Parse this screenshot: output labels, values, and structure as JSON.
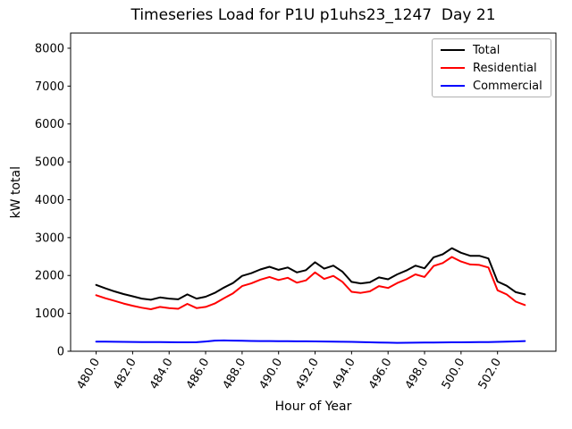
{
  "title": "Timeseries Load for P1U p1uhs23_1247  Day 21",
  "chart_data": {
    "type": "line",
    "title": "Timeseries Load for P1U p1uhs23_1247  Day 21",
    "xlabel": "Hour of Year",
    "ylabel": "kW total",
    "xlim": [
      478.6,
      505.2
    ],
    "ylim": [
      0,
      8400
    ],
    "grid": false,
    "legend_position": "upper right",
    "yticks": [
      0,
      1000,
      2000,
      3000,
      4000,
      5000,
      6000,
      7000,
      8000
    ],
    "xticks": {
      "values": [
        480,
        482,
        484,
        486,
        488,
        490,
        492,
        494,
        496,
        498,
        500,
        502
      ],
      "labels": [
        "480.0",
        "482.0",
        "484.0",
        "486.0",
        "488.0",
        "490.0",
        "492.0",
        "494.0",
        "496.0",
        "498.0",
        "500.0",
        "502.0"
      ]
    },
    "x": [
      480.0,
      480.5,
      481.0,
      481.5,
      482.0,
      482.5,
      483.0,
      483.5,
      484.0,
      484.5,
      485.0,
      485.5,
      486.0,
      486.5,
      487.0,
      487.5,
      488.0,
      488.5,
      489.0,
      489.5,
      490.0,
      490.5,
      491.0,
      491.5,
      492.0,
      492.5,
      493.0,
      493.5,
      494.0,
      494.5,
      495.0,
      495.5,
      496.0,
      496.5,
      497.0,
      497.5,
      498.0,
      498.5,
      499.0,
      499.5,
      500.0,
      500.5,
      501.0,
      501.5,
      502.0,
      502.5,
      503.0,
      503.5
    ],
    "series": [
      {
        "name": "Total",
        "color": "#000000",
        "values": [
          1750,
          1660,
          1580,
          1510,
          1450,
          1390,
          1360,
          1420,
          1390,
          1370,
          1500,
          1390,
          1440,
          1540,
          1680,
          1800,
          1990,
          2060,
          2160,
          2230,
          2150,
          2210,
          2080,
          2140,
          2350,
          2180,
          2260,
          2100,
          1830,
          1790,
          1820,
          1950,
          1900,
          2030,
          2130,
          2260,
          2190,
          2480,
          2560,
          2720,
          2600,
          2520,
          2520,
          2450,
          1840,
          1730,
          1560,
          1500
        ]
      },
      {
        "name": "Residential",
        "color": "#ff0000",
        "values": [
          1480,
          1400,
          1330,
          1260,
          1200,
          1150,
          1110,
          1170,
          1140,
          1120,
          1250,
          1140,
          1170,
          1260,
          1400,
          1530,
          1720,
          1790,
          1890,
          1960,
          1880,
          1940,
          1810,
          1870,
          2080,
          1910,
          1990,
          1830,
          1570,
          1540,
          1580,
          1720,
          1670,
          1800,
          1900,
          2030,
          1960,
          2250,
          2330,
          2490,
          2370,
          2290,
          2280,
          2210,
          1610,
          1500,
          1310,
          1220
        ]
      },
      {
        "name": "Commercial",
        "color": "#0000ff",
        "values": [
          255,
          252,
          250,
          248,
          245,
          242,
          240,
          240,
          238,
          237,
          236,
          238,
          258,
          280,
          285,
          280,
          275,
          272,
          270,
          268,
          267,
          265,
          263,
          262,
          260,
          257,
          254,
          251,
          247,
          242,
          237,
          231,
          226,
          222,
          224,
          227,
          229,
          231,
          233,
          235,
          236,
          238,
          240,
          243,
          247,
          253,
          260,
          268
        ]
      }
    ]
  }
}
